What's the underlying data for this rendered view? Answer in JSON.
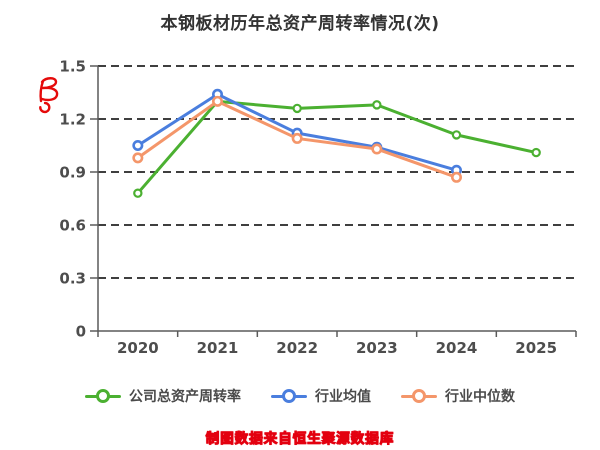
{
  "chart_data": {
    "type": "line",
    "title": "本钢板材历年总资产周转率情况(次)",
    "categories": [
      "2020",
      "2021",
      "2022",
      "2023",
      "2024",
      "2025"
    ],
    "series": [
      {
        "name": "公司总资产周转率",
        "color": "#4bb031",
        "values": [
          0.78,
          1.3,
          1.26,
          1.28,
          1.11,
          1.01
        ]
      },
      {
        "name": "行业均值",
        "color": "#4a7ede",
        "values": [
          1.05,
          1.34,
          1.12,
          1.04,
          0.91,
          null
        ]
      },
      {
        "name": "行业中位数",
        "color": "#f4966a",
        "values": [
          0.98,
          1.3,
          1.09,
          1.03,
          0.87,
          null
        ]
      }
    ],
    "ylim": [
      0,
      1.5
    ],
    "yticks": [
      0,
      0.3,
      0.6,
      0.9,
      1.2,
      1.5
    ],
    "ytick_labels": [
      "0",
      "0.3",
      "0.6",
      "0.9",
      "1.2",
      "1.5"
    ],
    "grid": true,
    "gridline_color": "#3f3f3f",
    "axis_color": "#5a5a5a",
    "tick_label_color": "#4d4d4d",
    "legend_position": "bottom"
  },
  "caption": {
    "text": "制图数据来自恒生聚源数据库",
    "fill_color": "#ffd400",
    "stroke_color": "#e3000f"
  },
  "annotation": {
    "type": "handwritten-scribble",
    "color": "#e50a0a"
  }
}
